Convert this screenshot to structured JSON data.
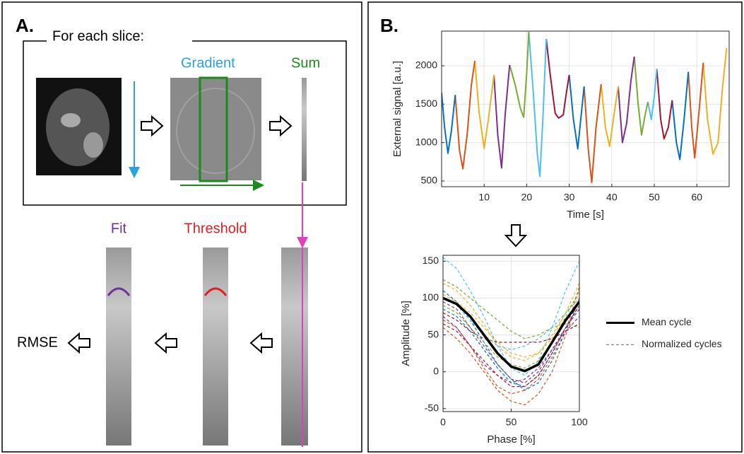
{
  "panel_a": {
    "label": "A.",
    "box_title": "For each slice:",
    "gradient": "Gradient",
    "sum": "Sum",
    "fit": "Fit",
    "threshold": "Threshold",
    "rmse": "RMSE"
  },
  "panel_b": {
    "label": "B."
  },
  "chart_data": [
    {
      "type": "line",
      "ylabel": "External signal [a.u.]",
      "xlabel": "Time [s]",
      "xlim": [
        0,
        67.6
      ],
      "ylim": [
        426,
        2451
      ],
      "xticks": [
        10,
        20,
        30,
        40,
        50,
        60
      ],
      "yticks": [
        500,
        1000,
        1500,
        2000
      ],
      "grid": true,
      "series": [
        {
          "color": "#0072BD",
          "x": [
            0,
            0.7,
            1.5,
            2.3,
            3.2
          ],
          "values": [
            1650,
            1200,
            860,
            1150,
            1620
          ]
        },
        {
          "color": "#D95319",
          "x": [
            3.2,
            4.2,
            5.0,
            6.0,
            7.0,
            7.8
          ],
          "values": [
            1620,
            900,
            660,
            1100,
            1750,
            2064
          ]
        },
        {
          "color": "#EDB120",
          "x": [
            7.8,
            8.8,
            10.0,
            11.0,
            12.3
          ],
          "values": [
            2064,
            1400,
            925,
            1300,
            1880
          ]
        },
        {
          "color": "#7E2F8E",
          "x": [
            12.3,
            13.2,
            14.1,
            15.0,
            16.0
          ],
          "values": [
            1880,
            1100,
            670,
            1400,
            2010
          ]
        },
        {
          "color": "#77AC30",
          "x": [
            16.0,
            17.3,
            18.5,
            19.3,
            20.0,
            20.5
          ],
          "values": [
            2010,
            1750,
            1450,
            1330,
            1900,
            2440
          ]
        },
        {
          "color": "#4DBEEE",
          "x": [
            20.5,
            21.5,
            22.5,
            23.1,
            23.8,
            24.6
          ],
          "values": [
            2440,
            1700,
            850,
            560,
            1300,
            2350
          ]
        },
        {
          "color": "#A2142F",
          "x": [
            24.6,
            25.5,
            26.7,
            27.5,
            28.6,
            29.2,
            30.0
          ],
          "values": [
            2350,
            1900,
            1380,
            1320,
            1360,
            1600,
            1880
          ]
        },
        {
          "color": "#0072BD",
          "x": [
            30.0,
            31.0,
            32.0,
            33.5
          ],
          "values": [
            1880,
            1300,
            920,
            1730
          ]
        },
        {
          "color": "#D95319",
          "x": [
            33.5,
            34.5,
            35.3,
            36.3,
            37.5
          ],
          "values": [
            1730,
            900,
            480,
            1200,
            1760
          ]
        },
        {
          "color": "#EDB120",
          "x": [
            37.5,
            38.5,
            39.5,
            40.5,
            41.5
          ],
          "values": [
            1760,
            1200,
            950,
            1350,
            1730
          ]
        },
        {
          "color": "#7E2F8E",
          "x": [
            41.5,
            42.5,
            43.5,
            44.5,
            45.3
          ],
          "values": [
            1730,
            1000,
            1250,
            1800,
            2120
          ]
        },
        {
          "color": "#77AC30",
          "x": [
            45.3,
            46.2,
            47.0,
            47.8,
            48.5
          ],
          "values": [
            2120,
            1500,
            1100,
            1350,
            1530
          ]
        },
        {
          "color": "#4DBEEE",
          "x": [
            48.5,
            49.3,
            50.0,
            50.6
          ],
          "values": [
            1530,
            1300,
            1600,
            1960
          ]
        },
        {
          "color": "#A2142F",
          "x": [
            50.6,
            51.5,
            52.3,
            53.3,
            54.2
          ],
          "values": [
            1960,
            1300,
            1050,
            1200,
            1550
          ]
        },
        {
          "color": "#0072BD",
          "x": [
            54.2,
            55.2,
            56.0,
            57.0,
            58.0
          ],
          "values": [
            1550,
            1000,
            780,
            1300,
            1920
          ]
        },
        {
          "color": "#D95319",
          "x": [
            58.0,
            58.8,
            59.5,
            60.5,
            61.5
          ],
          "values": [
            1920,
            1200,
            800,
            1400,
            2040
          ]
        },
        {
          "color": "#EDB120",
          "x": [
            61.5,
            62.5,
            63.8,
            65.0,
            66.0,
            67.0
          ],
          "values": [
            2040,
            1300,
            850,
            1000,
            1700,
            2230
          ]
        }
      ]
    },
    {
      "type": "line",
      "xlabel": "Phase [%]",
      "ylabel": "Amplitude [%]",
      "x": [
        0,
        10,
        20,
        30,
        40,
        50,
        60,
        70,
        80,
        90,
        100
      ],
      "xlim": [
        0,
        100
      ],
      "ylim": [
        -54,
        158
      ],
      "xticks": [
        0,
        50,
        100
      ],
      "yticks": [
        -50,
        0,
        50,
        100,
        150
      ],
      "grid": true,
      "legend": "right",
      "series": [
        {
          "name": "Mean cycle",
          "color": "#000000",
          "style": "solid",
          "values": [
            100,
            92,
            75,
            50,
            25,
            7,
            1,
            10,
            40,
            70,
            95
          ]
        },
        {
          "name": "Normalized cycles",
          "color": "#808080",
          "style": "dashed",
          "lines": [
            {
              "color": "#0072BD",
              "values": [
                85,
                75,
                55,
                30,
                5,
                -15,
                -20,
                -5,
                25,
                60,
                90
              ]
            },
            {
              "color": "#D95319",
              "values": [
                70,
                60,
                35,
                5,
                -20,
                -30,
                -25,
                -10,
                20,
                55,
                115
              ]
            },
            {
              "color": "#EDB120",
              "values": [
                120,
                110,
                90,
                65,
                35,
                20,
                15,
                25,
                50,
                80,
                105
              ]
            },
            {
              "color": "#7E2F8E",
              "values": [
                95,
                85,
                60,
                35,
                10,
                -10,
                -15,
                0,
                30,
                60,
                85
              ]
            },
            {
              "color": "#77AC30",
              "values": [
                125,
                115,
                100,
                85,
                70,
                55,
                45,
                50,
                60,
                65,
                60
              ]
            },
            {
              "color": "#4DBEEE",
              "values": [
                155,
                140,
                110,
                75,
                35,
                5,
                -5,
                15,
                60,
                110,
                150
              ]
            },
            {
              "color": "#A2142F",
              "values": [
                80,
                70,
                55,
                45,
                40,
                40,
                40,
                40,
                45,
                55,
                65
              ]
            },
            {
              "color": "#0072BD",
              "values": [
                110,
                95,
                70,
                40,
                10,
                -10,
                -25,
                -15,
                15,
                55,
                100
              ]
            },
            {
              "color": "#D95319",
              "values": [
                60,
                45,
                25,
                0,
                -25,
                -40,
                -45,
                -30,
                0,
                50,
                100
              ]
            },
            {
              "color": "#EDB120",
              "values": [
                105,
                95,
                80,
                60,
                40,
                25,
                20,
                25,
                45,
                80,
                120
              ]
            },
            {
              "color": "#7E2F8E",
              "values": [
                75,
                60,
                35,
                10,
                -5,
                -15,
                -10,
                5,
                30,
                55,
                75
              ]
            },
            {
              "color": "#77AC30",
              "values": [
                90,
                80,
                60,
                40,
                20,
                10,
                5,
                15,
                40,
                75,
                110
              ]
            },
            {
              "color": "#4DBEEE",
              "values": [
                100,
                90,
                70,
                50,
                35,
                30,
                35,
                45,
                60,
                80,
                100
              ]
            },
            {
              "color": "#A2142F",
              "values": [
                65,
                55,
                35,
                15,
                -5,
                -20,
                -20,
                -5,
                25,
                60,
                90
              ]
            }
          ]
        }
      ]
    }
  ]
}
